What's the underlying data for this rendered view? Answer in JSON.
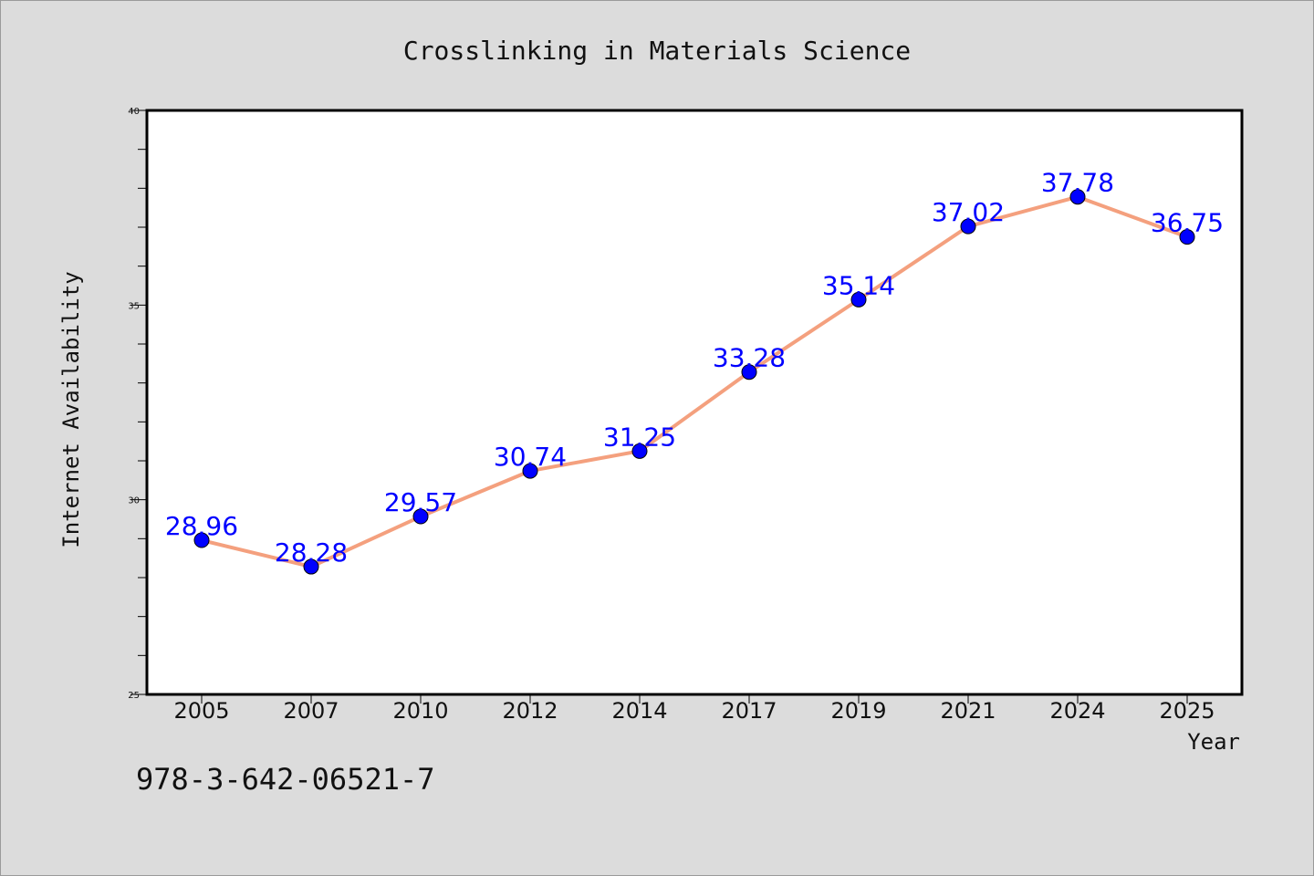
{
  "chart_data": {
    "type": "line",
    "title": "Crosslinking in Materials Science",
    "xlabel": "Year",
    "ylabel": "Internet Availability",
    "categories": [
      "2005",
      "2007",
      "2010",
      "2012",
      "2014",
      "2017",
      "2019",
      "2021",
      "2024",
      "2025"
    ],
    "series": [
      {
        "values": [
          28.96,
          28.28,
          29.57,
          30.74,
          31.25,
          33.28,
          35.14,
          37.02,
          37.78,
          36.75
        ]
      }
    ],
    "data_labels": [
      "28.96",
      "28.28",
      "29.57",
      "30.74",
      "31.25",
      "33.28",
      "35.14",
      "37.02",
      "37.78",
      "36.75"
    ],
    "ylim": [
      25,
      40
    ],
    "yticks": [
      "25",
      "30",
      "35",
      "40"
    ],
    "grid": false,
    "legend": "none",
    "colors": {
      "line": "#f4a07e",
      "marker": "#0000ff",
      "label": "#0000ff",
      "background": "#dcdcdc",
      "plot_area": "#ffffff"
    }
  },
  "footer_text": "978-3-642-06521-7"
}
